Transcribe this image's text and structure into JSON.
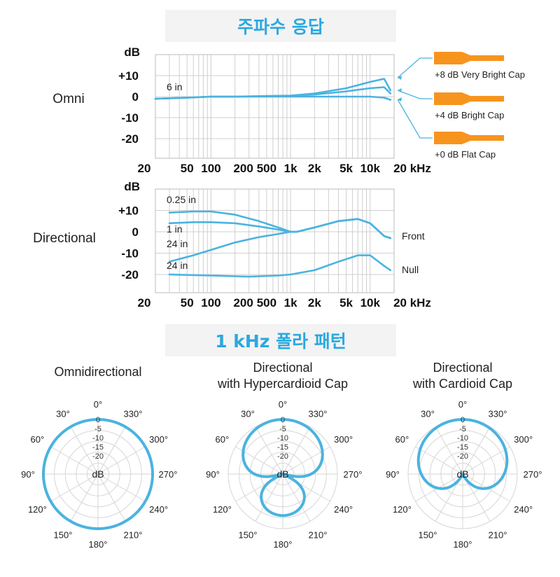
{
  "headings": {
    "freq_response": "주파수 응답",
    "polar": "1 kHz 폴라 패턴"
  },
  "colors": {
    "accent": "#2aa9e0",
    "curve": "#4ab3e0",
    "cap_orange": "#f7941d",
    "grid": "#cfcfcf"
  },
  "chart_data": [
    {
      "type": "line",
      "row_label": "Omni",
      "ylabel": "dB",
      "x_unit": "kHz",
      "xscale": "log",
      "xlim": [
        20,
        20000
      ],
      "ylim": [
        -25,
        12
      ],
      "y_ticks": [
        "+10",
        "0",
        "-10",
        "-20"
      ],
      "x_ticks": [
        "20",
        "50",
        "100",
        "200",
        "500",
        "1k",
        "2k",
        "5k",
        "10k",
        "20 kHz"
      ],
      "annotations": [
        "6 in"
      ],
      "series": [
        {
          "name": "+8 dB Very Bright Cap",
          "x": [
            20,
            50,
            100,
            200,
            500,
            1000,
            2000,
            5000,
            10000,
            15000,
            18000
          ],
          "y": [
            -1,
            -0.5,
            0,
            0,
            0.3,
            0.5,
            1.5,
            4,
            7,
            8.5,
            3
          ]
        },
        {
          "name": "+4 dB Bright Cap",
          "x": [
            20,
            50,
            100,
            200,
            500,
            1000,
            2000,
            5000,
            10000,
            15000,
            18000
          ],
          "y": [
            -1,
            -0.5,
            0,
            0,
            0.2,
            0.4,
            1,
            2.5,
            4,
            4.5,
            1.5
          ]
        },
        {
          "name": "+0 dB Flat Cap",
          "x": [
            20,
            50,
            100,
            200,
            500,
            1000,
            2000,
            5000,
            10000,
            15000,
            18000
          ],
          "y": [
            -1,
            -0.5,
            0,
            0,
            0,
            0,
            0,
            0,
            0,
            -0.5,
            -1.5
          ]
        }
      ]
    },
    {
      "type": "line",
      "row_label": "Directional",
      "ylabel": "dB",
      "x_unit": "kHz",
      "xscale": "log",
      "xlim": [
        20,
        20000
      ],
      "ylim": [
        -25,
        12
      ],
      "y_ticks": [
        "+10",
        "0",
        "-10",
        "-20"
      ],
      "x_ticks": [
        "20",
        "50",
        "100",
        "200",
        "500",
        "1k",
        "2k",
        "5k",
        "10k",
        "20 kHz"
      ],
      "side_labels": [
        "Front",
        "Null"
      ],
      "annotations": [
        "0.25 in",
        "1 in",
        "24 in",
        "24 in"
      ],
      "series": [
        {
          "x": [
            30,
            60,
            100,
            200,
            400,
            700,
            1000,
            1200,
            2000,
            4000,
            7000,
            10000,
            15000,
            18000
          ],
          "y": [
            9,
            9.5,
            9.5,
            8,
            5,
            2,
            0,
            0,
            2,
            5,
            6,
            4,
            -2,
            -3
          ]
        },
        {
          "x": [
            30,
            60,
            100,
            200,
            400,
            700,
            1000,
            1200,
            2000,
            4000,
            7000,
            10000,
            15000,
            18000
          ],
          "y": [
            4,
            4.5,
            4.5,
            4,
            2.5,
            1,
            0,
            0,
            2,
            5,
            6,
            4,
            -2,
            -3
          ]
        },
        {
          "x": [
            30,
            60,
            100,
            200,
            400,
            700,
            1000,
            1200,
            2000,
            4000,
            7000,
            10000,
            15000,
            18000
          ],
          "y": [
            -14,
            -11,
            -8.5,
            -5,
            -2.5,
            -1,
            0,
            0,
            2,
            5,
            6,
            4,
            -2,
            -3
          ]
        },
        {
          "x": [
            30,
            100,
            300,
            700,
            1000,
            2000,
            4000,
            7000,
            10000,
            15000,
            18000
          ],
          "y": [
            -20,
            -20.5,
            -21,
            -20.5,
            -20,
            -18,
            -14,
            -11,
            -11,
            -16,
            -18
          ]
        }
      ]
    },
    {
      "type": "polar",
      "title_lines": [
        "Omnidirectional"
      ],
      "ring_labels": [
        "0",
        "-5",
        "-10",
        "-15",
        "-20"
      ],
      "center_label": "dB",
      "pattern": "omni",
      "alpha": 1.0
    },
    {
      "type": "polar",
      "title_lines": [
        "Directional",
        "with Hypercardioid Cap"
      ],
      "ring_labels": [
        "0",
        "-5",
        "-10",
        "-15",
        "-20"
      ],
      "center_label": "dB",
      "pattern": "hypercardioid",
      "alpha": 0.25
    },
    {
      "type": "polar",
      "title_lines": [
        "Directional",
        "with Cardioid Cap"
      ],
      "ring_labels": [
        "0",
        "-5",
        "-10",
        "-15",
        "-20"
      ],
      "center_label": "dB",
      "pattern": "cardioid",
      "alpha": 0.5
    }
  ],
  "angle_labels": [
    "0°",
    "330°",
    "300°",
    "270°",
    "240°",
    "210°",
    "180°",
    "150°",
    "120°",
    "90°",
    "60°",
    "30°"
  ]
}
